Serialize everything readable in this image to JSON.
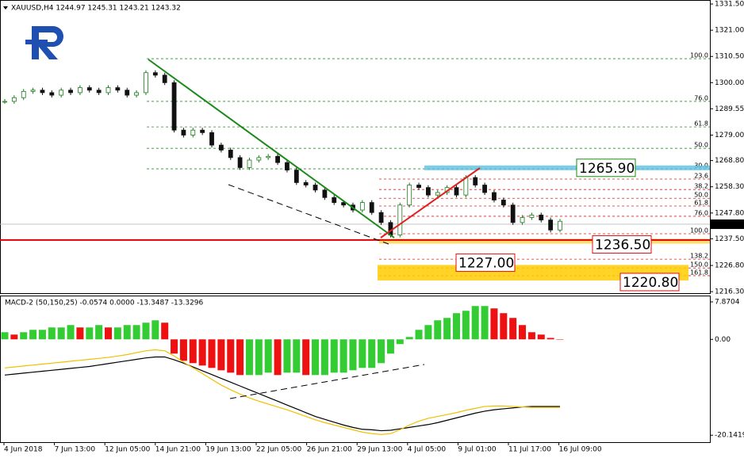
{
  "chart_data": [
    {
      "type": "candlestick",
      "title": "XAUUSD,H4  1244.97 1245.31 1243.21 1243.32",
      "x_labels": [
        "4 Jun 2018",
        "7 Jun 13:00",
        "12 Jun 05:00",
        "14 Jun 21:00",
        "19 Jun 13:00",
        "22 Jun 05:00",
        "26 Jun 21:00",
        "29 Jun 13:00",
        "4 Jul 05:00",
        "9 Jul 01:00",
        "11 Jul 17:00",
        "16 Jul 09:00"
      ],
      "closes": [
        1292.5,
        1294,
        1296.5,
        1297,
        1296,
        1295,
        1297,
        1296,
        1298,
        1297,
        1296,
        1298,
        1297,
        1295,
        1296,
        1304,
        1303,
        1300,
        1281,
        1279,
        1281,
        1280,
        1275,
        1273,
        1270,
        1266,
        1269,
        1270,
        1270.5,
        1268,
        1265,
        1260,
        1259,
        1257,
        1254,
        1252,
        1251,
        1249,
        1252,
        1248,
        1244,
        1239,
        1251,
        1259,
        1258,
        1255,
        1256,
        1258,
        1255,
        1262,
        1259,
        1256,
        1253,
        1251,
        1244,
        1246,
        1247,
        1245,
        1241,
        1244.5
      ],
      "up_color": "#1a7a1a",
      "down_color": "#111111",
      "ylim": [
        1215.7,
        1333.1
      ],
      "yticks": [
        {
          "value": 1331.5,
          "label": "1331.50"
        },
        {
          "value": 1321,
          "label": "1321.00"
        },
        {
          "value": 1310.5,
          "label": "1310.50"
        },
        {
          "value": 1300,
          "label": "1300.00"
        },
        {
          "value": 1289.55,
          "label": "1289.55"
        },
        {
          "value": 1279,
          "label": "1279.00"
        },
        {
          "value": 1268.8,
          "label": "1268.80"
        },
        {
          "value": 1258.3,
          "label": "1258.30"
        },
        {
          "value": 1247.8,
          "label": "1247.80"
        },
        {
          "value": 1237.5,
          "label": "1237.50"
        },
        {
          "value": 1226.8,
          "label": "1226.80"
        },
        {
          "value": 1216.3,
          "label": "1216.30"
        }
      ],
      "last_price": 1243.32,
      "support_price": 1237.0,
      "fib_sets": [
        {
          "color": "#2e8b2e",
          "levels": [
            {
              "label": "100.0",
              "price": 1309.6
            },
            {
              "label": "76.0",
              "price": 1292.5
            },
            {
              "label": "61.8",
              "price": 1282.3
            },
            {
              "label": "50.0",
              "price": 1273.7
            },
            {
              "label": "30.0",
              "price": 1265.5
            }
          ]
        },
        {
          "color": "#dd2222",
          "levels": [
            {
              "label": "23.6",
              "price": 1261.4
            },
            {
              "label": "38.2",
              "price": 1257.2
            },
            {
              "label": "50.0",
              "price": 1253.7
            },
            {
              "label": "61.8",
              "price": 1250.6
            },
            {
              "label": "76.0",
              "price": 1246.5
            },
            {
              "label": "100.0",
              "price": 1239.5
            },
            {
              "label": "138.2",
              "price": 1229.3
            },
            {
              "label": "150.0",
              "price": 1225.8
            },
            {
              "label": "161.8",
              "price": 1222.7
            }
          ]
        }
      ],
      "zones": [
        {
          "label": "1265.90",
          "price": 1265.9,
          "color": "#1a8a1a",
          "band": "#5bc0de"
        },
        {
          "label": "1236.50",
          "price": 1236.5,
          "color": "#dd1111",
          "band": "#ffd24a"
        },
        {
          "label": "1227.00",
          "price": 1227.0,
          "color": "#dd1111",
          "band": "#ffcc00"
        },
        {
          "label": "1220.80",
          "price": 1220.8,
          "color": "#dd1111",
          "band": "#ffcc00"
        }
      ]
    },
    {
      "type": "macd",
      "title": "MACD-2 (50,150,25) -0.0574 0.0000 -13.3487 -13.3296",
      "histogram": [
        1.5,
        1,
        1.5,
        2,
        2,
        2.5,
        2.5,
        3,
        2.5,
        2.5,
        3,
        2.5,
        2.5,
        3,
        3,
        3.5,
        4,
        3.5,
        -3,
        -4.5,
        -5,
        -5.5,
        -6,
        -6.5,
        -7,
        -7.5,
        -7.5,
        -7.5,
        -7,
        -7.5,
        -7,
        -7,
        -7.5,
        -7.5,
        -7.5,
        -7,
        -7,
        -6.5,
        -6,
        -6,
        -5,
        -3,
        -1,
        0.5,
        2,
        3,
        4,
        4.5,
        5.5,
        6,
        7,
        7,
        6.5,
        5.5,
        4.5,
        3,
        1.5,
        1,
        0.3,
        0
      ],
      "rising_color": "#33cc33",
      "falling_color": "#ee1111",
      "series": [
        {
          "name": "Main",
          "color": "#000000",
          "values": [
            -7.5,
            -7.3,
            -7.1,
            -6.9,
            -6.7,
            -6.5,
            -6.3,
            -6.1,
            -5.9,
            -5.7,
            -5.4,
            -5.1,
            -4.8,
            -4.5,
            -4.2,
            -3.9,
            -3.7,
            -3.7,
            -4.3,
            -5,
            -5.8,
            -6.6,
            -7.4,
            -8.2,
            -9,
            -9.8,
            -10.6,
            -11.4,
            -12.2,
            -13,
            -13.8,
            -14.6,
            -15.4,
            -16.2,
            -16.8,
            -17.4,
            -18,
            -18.5,
            -18.9,
            -19,
            -19.2,
            -19.1,
            -18.8,
            -18.5,
            -18.2,
            -17.9,
            -17.5,
            -17,
            -16.5,
            -16,
            -15.5,
            -15.1,
            -14.8,
            -14.6,
            -14.4,
            -14.2,
            -14.1,
            -14.1,
            -14.1,
            -14.1
          ]
        },
        {
          "name": "Signal",
          "color": "#f0c000",
          "values": [
            -6,
            -5.8,
            -5.6,
            -5.4,
            -5.2,
            -5,
            -4.8,
            -4.6,
            -4.4,
            -4.2,
            -4,
            -3.8,
            -3.5,
            -3.2,
            -2.8,
            -2.4,
            -2.2,
            -2.4,
            -3.5,
            -4.8,
            -6,
            -7.2,
            -8.4,
            -9.6,
            -10.6,
            -11.5,
            -12.3,
            -13,
            -13.6,
            -14.2,
            -14.8,
            -15.5,
            -16.2,
            -16.9,
            -17.5,
            -18,
            -18.5,
            -19,
            -19.5,
            -19.8,
            -20,
            -19.8,
            -19,
            -18,
            -17.2,
            -16.6,
            -16.2,
            -15.8,
            -15.4,
            -14.9,
            -14.5,
            -14.1,
            -14,
            -14,
            -14.1,
            -14.2,
            -14.3,
            -14.3,
            -14.3,
            -14.3
          ]
        }
      ],
      "ylim": [
        -21.6,
        9.2
      ],
      "yticks": [
        7.8704,
        {
          "value": 0,
          "label": "0.00"
        },
        -20.1419
      ]
    }
  ]
}
